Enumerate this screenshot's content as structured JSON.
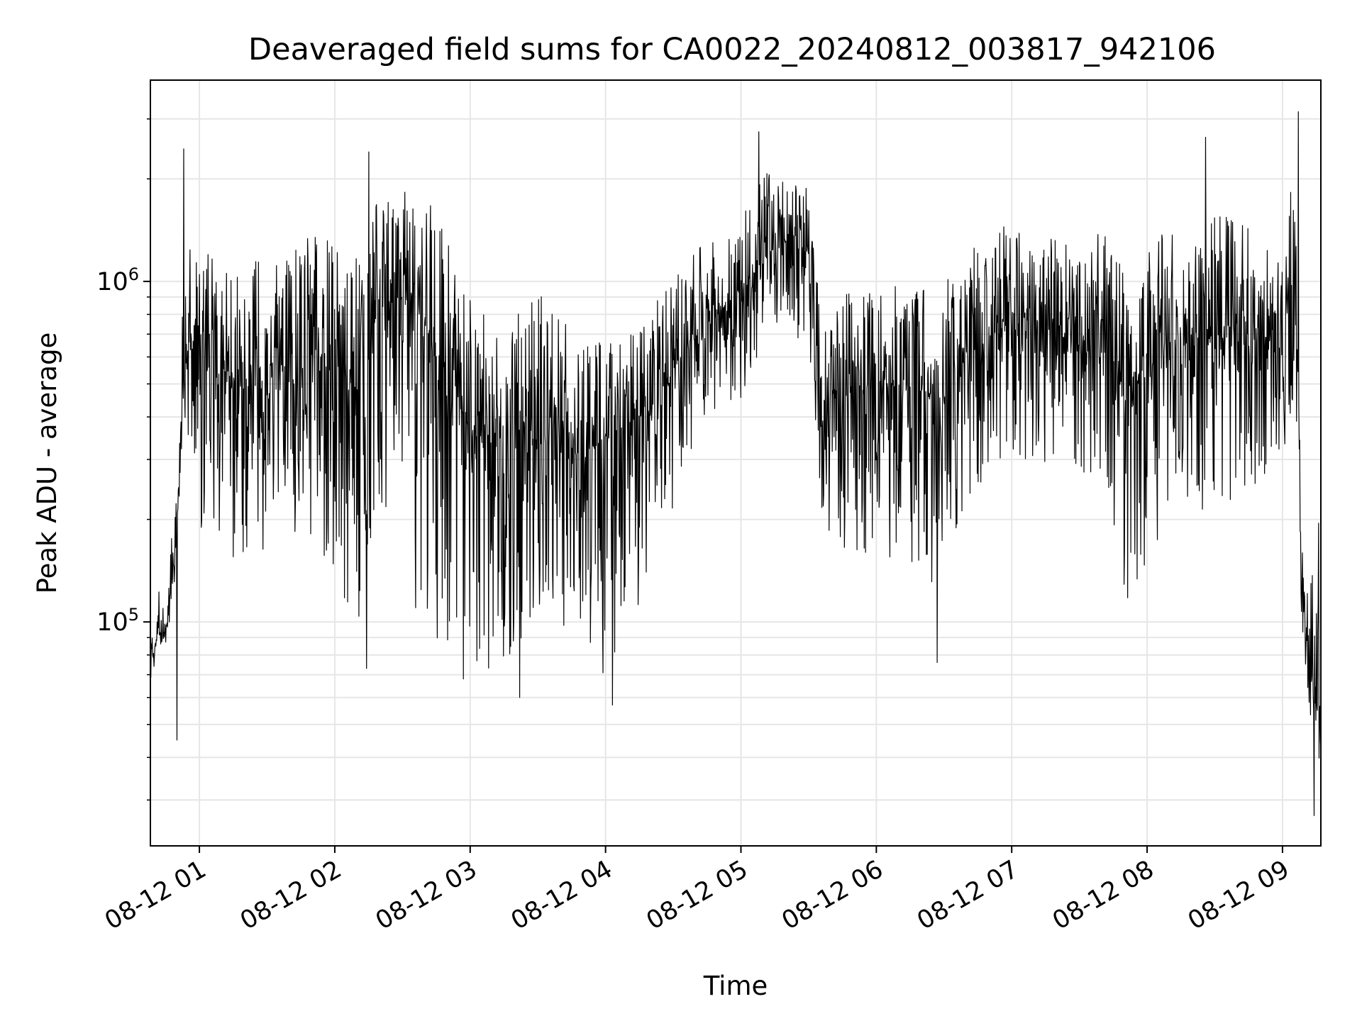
{
  "chart_data": {
    "type": "line",
    "title": "Deaveraged field sums for CA0022_20240812_003817_942106",
    "xlabel": "Time",
    "ylabel": "Peak ADU - average",
    "y_scale": "log",
    "ylim": [
      22000,
      3900000
    ],
    "xlim": [
      "2024-08-12 00:38:17",
      "2024-08-12 09:17:00"
    ],
    "grid": true,
    "line_color": "#000000",
    "grid_color": "#e6e6e6",
    "x_ticks": [
      {
        "time": "2024-08-12 01:00",
        "label": "08-12 01"
      },
      {
        "time": "2024-08-12 02:00",
        "label": "08-12 02"
      },
      {
        "time": "2024-08-12 03:00",
        "label": "08-12 03"
      },
      {
        "time": "2024-08-12 04:00",
        "label": "08-12 04"
      },
      {
        "time": "2024-08-12 05:00",
        "label": "08-12 05"
      },
      {
        "time": "2024-08-12 06:00",
        "label": "08-12 06"
      },
      {
        "time": "2024-08-12 07:00",
        "label": "08-12 07"
      },
      {
        "time": "2024-08-12 08:00",
        "label": "08-12 08"
      },
      {
        "time": "2024-08-12 09:00",
        "label": "08-12 09"
      }
    ],
    "y_major_ticks": [
      {
        "value": 100000,
        "base": "10",
        "exp": "5"
      },
      {
        "value": 1000000,
        "base": "10",
        "exp": "6"
      }
    ],
    "series": [
      {
        "style": "dense noisy envelope",
        "x": [
          "2024-08-12 00:38:17",
          "2024-08-12 00:42",
          "2024-08-12 00:46",
          "2024-08-12 00:50",
          "2024-08-12 00:53",
          "2024-08-12 00:56",
          "2024-08-12 01:00",
          "2024-08-12 01:10",
          "2024-08-12 01:20",
          "2024-08-12 01:30",
          "2024-08-12 01:40",
          "2024-08-12 01:50",
          "2024-08-12 02:00",
          "2024-08-12 02:10",
          "2024-08-12 02:20",
          "2024-08-12 02:30",
          "2024-08-12 02:40",
          "2024-08-12 02:50",
          "2024-08-12 03:00",
          "2024-08-12 03:10",
          "2024-08-12 03:20",
          "2024-08-12 03:30",
          "2024-08-12 03:40",
          "2024-08-12 03:50",
          "2024-08-12 04:00",
          "2024-08-12 04:10",
          "2024-08-12 04:20",
          "2024-08-12 04:30",
          "2024-08-12 04:40",
          "2024-08-12 04:50",
          "2024-08-12 05:00",
          "2024-08-12 05:10",
          "2024-08-12 05:20",
          "2024-08-12 05:30",
          "2024-08-12 05:35",
          "2024-08-12 05:40",
          "2024-08-12 05:50",
          "2024-08-12 06:00",
          "2024-08-12 06:10",
          "2024-08-12 06:20",
          "2024-08-12 06:30",
          "2024-08-12 06:40",
          "2024-08-12 06:50",
          "2024-08-12 07:00",
          "2024-08-12 07:10",
          "2024-08-12 07:20",
          "2024-08-12 07:30",
          "2024-08-12 07:40",
          "2024-08-12 07:50",
          "2024-08-12 08:00",
          "2024-08-12 08:10",
          "2024-08-12 08:20",
          "2024-08-12 08:30",
          "2024-08-12 08:40",
          "2024-08-12 08:50",
          "2024-08-12 09:00",
          "2024-08-12 09:05",
          "2024-08-12 09:08",
          "2024-08-12 09:11",
          "2024-08-12 09:14",
          "2024-08-12 09:17"
        ],
        "center": [
          75000,
          95000,
          100000,
          180000,
          500000,
          700000,
          600000,
          550000,
          480000,
          520000,
          550000,
          600000,
          550000,
          480000,
          850000,
          900000,
          750000,
          550000,
          350000,
          350000,
          350000,
          450000,
          400000,
          300000,
          350000,
          380000,
          420000,
          550000,
          700000,
          800000,
          850000,
          1200000,
          1300000,
          1200000,
          400000,
          450000,
          480000,
          480000,
          500000,
          480000,
          450000,
          600000,
          700000,
          750000,
          750000,
          700000,
          650000,
          700000,
          450000,
          550000,
          700000,
          650000,
          700000,
          750000,
          650000,
          600000,
          1100000,
          150000,
          70000,
          60000,
          55000
        ],
        "spread_low": [
          0.9,
          0.85,
          0.85,
          0.8,
          0.6,
          0.45,
          0.3,
          0.25,
          0.25,
          0.3,
          0.3,
          0.25,
          0.2,
          0.2,
          0.25,
          0.12,
          0.12,
          0.15,
          0.2,
          0.2,
          0.2,
          0.25,
          0.25,
          0.25,
          0.2,
          0.25,
          0.3,
          0.4,
          0.5,
          0.5,
          0.5,
          0.55,
          0.6,
          0.5,
          0.5,
          0.4,
          0.3,
          0.3,
          0.3,
          0.25,
          0.3,
          0.35,
          0.4,
          0.4,
          0.4,
          0.4,
          0.4,
          0.35,
          0.25,
          0.25,
          0.3,
          0.3,
          0.3,
          0.3,
          0.35,
          0.4,
          0.4,
          0.6,
          0.6,
          0.6,
          0.7
        ],
        "spread_high": [
          1.2,
          1.3,
          1.3,
          1.5,
          2.0,
          2.2,
          2.0,
          2.2,
          2.3,
          2.3,
          2.2,
          2.3,
          2.5,
          2.5,
          2.2,
          2.1,
          2.4,
          2.4,
          2.7,
          2.6,
          2.5,
          2.2,
          2.0,
          2.2,
          2.0,
          2.0,
          2.0,
          1.9,
          1.8,
          1.8,
          1.8,
          1.8,
          1.7,
          1.6,
          1.8,
          2.0,
          2.0,
          2.0,
          2.0,
          2.1,
          2.2,
          2.0,
          2.0,
          2.0,
          1.9,
          1.9,
          2.0,
          2.0,
          2.3,
          2.4,
          2.2,
          2.3,
          2.2,
          2.2,
          2.2,
          2.0,
          2.0,
          1.3,
          1.8,
          2.5,
          2.0
        ],
        "extremes": [
          {
            "time": "2024-08-12 00:50",
            "value": 45000
          },
          {
            "time": "2024-08-12 00:53",
            "value": 2450000
          },
          {
            "time": "2024-08-12 02:14",
            "value": 73000
          },
          {
            "time": "2024-08-12 02:15",
            "value": 2400000
          },
          {
            "time": "2024-08-12 02:57",
            "value": 68000
          },
          {
            "time": "2024-08-12 03:22",
            "value": 60000
          },
          {
            "time": "2024-08-12 04:03",
            "value": 57000
          },
          {
            "time": "2024-08-12 05:08",
            "value": 2750000
          },
          {
            "time": "2024-08-12 06:27",
            "value": 76000
          },
          {
            "time": "2024-08-12 08:26",
            "value": 2650000
          },
          {
            "time": "2024-08-12 09:07",
            "value": 3150000
          },
          {
            "time": "2024-08-12 09:14",
            "value": 27000
          },
          {
            "time": "2024-08-12 09:16",
            "value": 195000
          },
          {
            "time": "2024-08-12 09:17",
            "value": 42000
          }
        ]
      }
    ]
  }
}
